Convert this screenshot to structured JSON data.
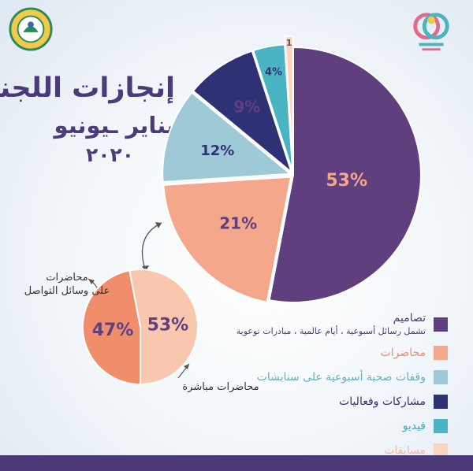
{
  "header": {
    "title": "إنجازات اللجنة",
    "subtitle": "يناير ـيونيو",
    "year": "٢٠٢٠"
  },
  "colors": {
    "purple": "#5f3f7e",
    "salmon": "#f5a78b",
    "lightblue": "#9ec9d6",
    "navy": "#2e3275",
    "teal": "#4bb4c2",
    "peach": "#fcd2c0",
    "sub_dark": "#f08d6b",
    "sub_light": "#f9c7ae",
    "title": "#4b3b7a",
    "bar": "#4a3878"
  },
  "chart_data": [
    {
      "type": "pie",
      "categories": [
        "تصاميم",
        "محاضرات",
        "وقفات صحية أسبوعية على سنابشات",
        "مشاركات وفعاليات",
        "فيديو",
        "مسابقات"
      ],
      "values": [
        53,
        21,
        12,
        9,
        4,
        1
      ],
      "data_labels": [
        "53%",
        "21%",
        "12%",
        "9%",
        "4%",
        "1"
      ],
      "legend": [
        {
          "label": "تصاميم",
          "sublabel": "تشمل رسائل أسبوعية ، أيام عالمية ، مبادرات توعوية",
          "color": "#5f3f7e",
          "text_color": "#4b3b7a"
        },
        {
          "label": "محاضرات",
          "sublabel": "",
          "color": "#f5a78b",
          "text_color": "#f28a6a"
        },
        {
          "label": "وقفات صحية أسبوعية على سنابشات",
          "sublabel": "",
          "color": "#9ec9d6",
          "text_color": "#6aaec2"
        },
        {
          "label": "مشاركات وفعاليات",
          "sublabel": "",
          "color": "#2e3275",
          "text_color": "#2e3275"
        },
        {
          "label": "فيديو",
          "sublabel": "",
          "color": "#4bb4c2",
          "text_color": "#3fa9b9"
        },
        {
          "label": "مسابقات",
          "sublabel": "",
          "color": "#fcd2c0",
          "text_color": "#f5b99f"
        }
      ]
    },
    {
      "type": "pie",
      "categories": [
        "محاضرات على وسائل التواصل",
        "محاضرات مباشرة"
      ],
      "values": [
        47,
        53
      ],
      "data_labels": [
        "47%",
        "53%"
      ],
      "labels": {
        "left": "محاضرات\nعلى وسائل التواصل",
        "right": "محاضرات مباشرة"
      }
    }
  ]
}
